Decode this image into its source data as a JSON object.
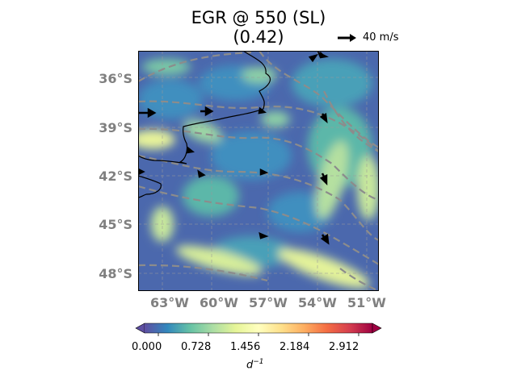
{
  "title": {
    "line1": "EGR @ 550 (SL)",
    "line2": "(0.42)"
  },
  "reference_arrow": {
    "label": "40 m/s"
  },
  "map": {
    "lat_labels": [
      "36°S",
      "39°S",
      "42°S",
      "45°S",
      "48°S"
    ],
    "lon_labels": [
      "63°W",
      "60°W",
      "57°W",
      "54°W",
      "51°W"
    ],
    "extent": {
      "lon": [
        -65,
        -50.5
      ],
      "lat": [
        -34.3,
        -49.1
      ]
    },
    "field_colors": [
      "#5e4fa2",
      "#3288bd",
      "#66c2a5",
      "#abdda4",
      "#e6f598",
      "#ffffbf",
      "#fee08b",
      "#fdae61",
      "#f46d43",
      "#d53e4f",
      "#9e0142"
    ],
    "contour_color": "#8c8c8c",
    "coast_color": "#000000"
  },
  "colorbar": {
    "ticks": [
      "0.000",
      "0.728",
      "1.456",
      "2.184",
      "2.912"
    ],
    "label_base": "d",
    "label_exp": "−1",
    "range": [
      0,
      3.2
    ],
    "colormap": "Spectral_r"
  }
}
